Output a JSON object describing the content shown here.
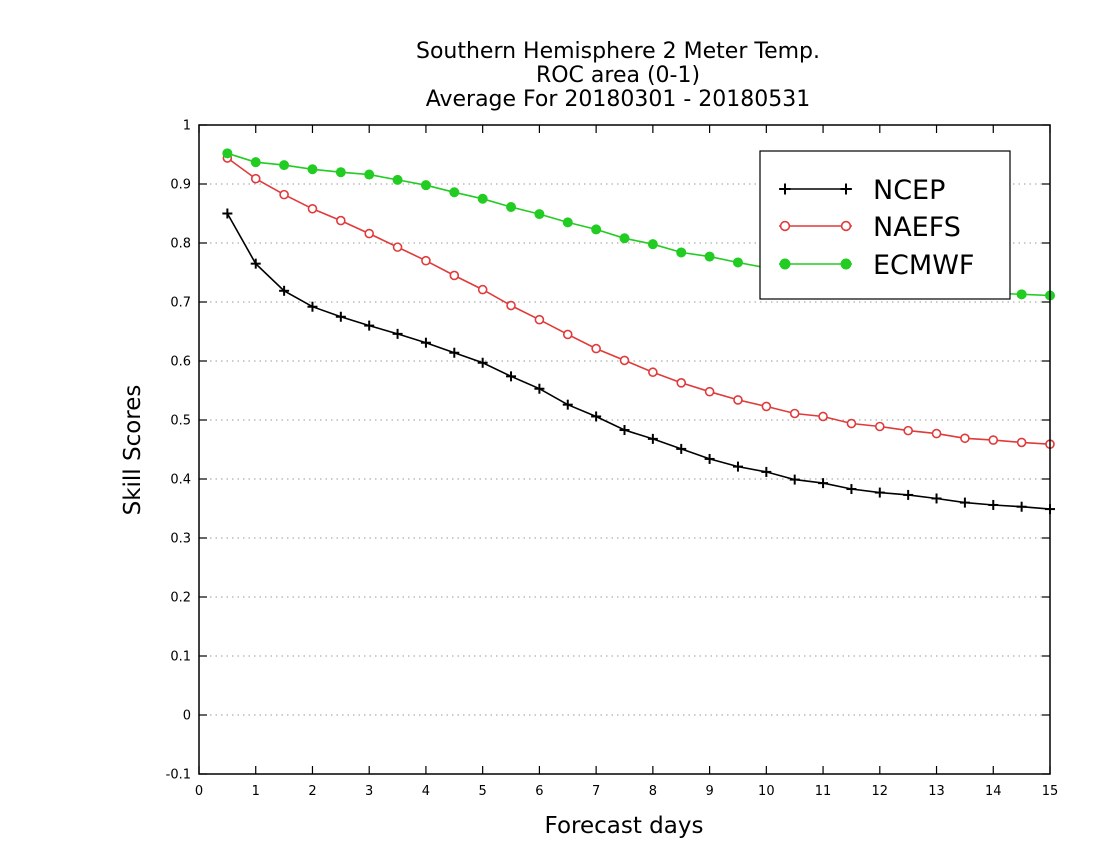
{
  "chart_data": {
    "type": "line",
    "title": [
      "Southern Hemisphere 2 Meter Temp.",
      "ROC area (0-1)",
      "Average For 20180301 - 20180531"
    ],
    "xlabel": "Forecast days",
    "ylabel": "Skill Scores",
    "xlim": [
      0,
      15
    ],
    "ylim": [
      -0.1,
      1
    ],
    "xticks": [
      0,
      1,
      2,
      3,
      4,
      5,
      6,
      7,
      8,
      9,
      10,
      11,
      12,
      13,
      14,
      15
    ],
    "yticks": [
      -0.1,
      0,
      0.1,
      0.2,
      0.3,
      0.4,
      0.5,
      0.6,
      0.7,
      0.8,
      0.9,
      1
    ],
    "ytick_labels": [
      "-0.1",
      "0",
      "0.1",
      "0.2",
      "0.3",
      "0.4",
      "0.5",
      "0.6",
      "0.7",
      "0.8",
      "0.9",
      "1"
    ],
    "grid": "horizontal dotted",
    "legend_position": "top-right",
    "x": [
      0.5,
      1,
      1.5,
      2,
      2.5,
      3,
      3.5,
      4,
      4.5,
      5,
      5.5,
      6,
      6.5,
      7,
      7.5,
      8,
      8.5,
      9,
      9.5,
      10,
      10.5,
      11,
      11.5,
      12,
      12.5,
      13,
      13.5,
      14,
      14.5,
      15
    ],
    "series": [
      {
        "name": "NCEP",
        "color": "#000000",
        "marker": "plus",
        "values": [
          0.85,
          0.765,
          0.719,
          0.692,
          0.675,
          0.66,
          0.646,
          0.631,
          0.614,
          0.597,
          0.574,
          0.553,
          0.526,
          0.506,
          0.483,
          0.468,
          0.451,
          0.434,
          0.421,
          0.412,
          0.399,
          0.393,
          0.383,
          0.377,
          0.373,
          0.367,
          0.36,
          0.356,
          0.353,
          0.349
        ]
      },
      {
        "name": "NAEFS",
        "color": "#e03a3a",
        "marker": "open-circle",
        "values": [
          0.944,
          0.909,
          0.882,
          0.858,
          0.838,
          0.816,
          0.793,
          0.77,
          0.745,
          0.721,
          0.694,
          0.67,
          0.645,
          0.621,
          0.601,
          0.581,
          0.563,
          0.548,
          0.534,
          0.523,
          0.511,
          0.506,
          0.494,
          0.489,
          0.482,
          0.477,
          0.469,
          0.466,
          0.462,
          0.459
        ]
      },
      {
        "name": "ECMWF",
        "color": "#22cc22",
        "marker": "filled-circle",
        "values": [
          0.952,
          0.937,
          0.932,
          0.925,
          0.92,
          0.916,
          0.907,
          0.898,
          0.886,
          0.875,
          0.861,
          0.849,
          0.835,
          0.823,
          0.808,
          0.798,
          0.784,
          0.777,
          0.767,
          0.758,
          0.75,
          0.743,
          0.736,
          0.73,
          0.726,
          0.722,
          0.718,
          0.715,
          0.713,
          0.711
        ]
      }
    ]
  }
}
